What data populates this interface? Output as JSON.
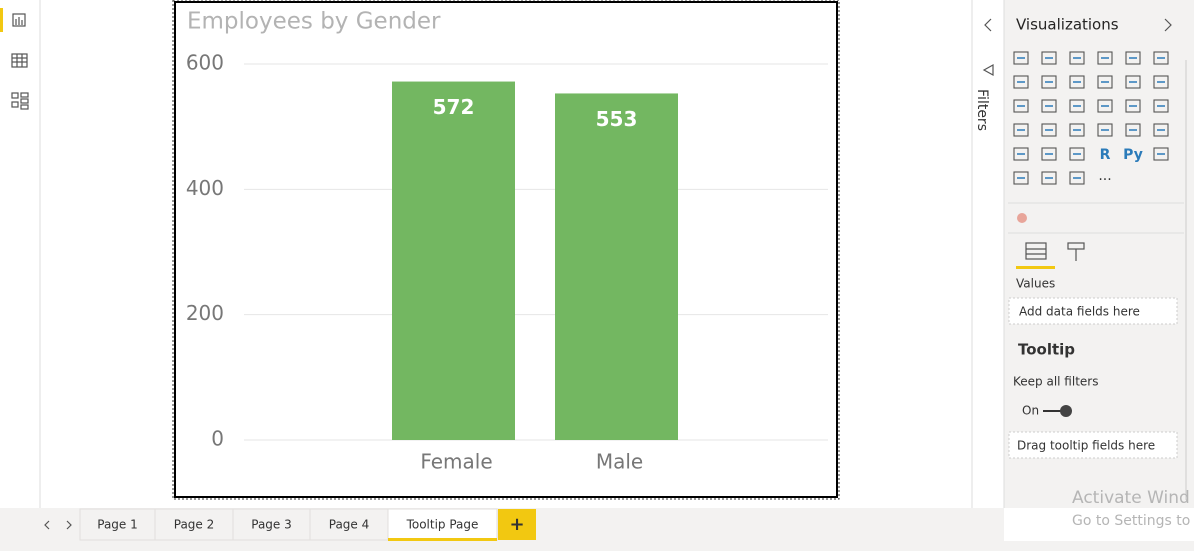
{
  "chart_data": {
    "type": "bar",
    "title": "Employees by Gender",
    "categories": [
      "Female",
      "Male"
    ],
    "values": [
      572,
      553
    ],
    "color": "#73b761",
    "ylim": [
      0,
      600
    ],
    "yticks": [
      0,
      200,
      400,
      600
    ],
    "grid": true,
    "data_labels": true
  },
  "filters_pane": {
    "title": "Filters"
  },
  "visualizations_pane": {
    "title": "Visualizations",
    "icon_labels": [
      "R",
      "Py"
    ],
    "more": "···",
    "values_label": "Values",
    "values_placeholder": "Add data fields here",
    "tooltip_title": "Tooltip",
    "keep_all_filters": "Keep all filters",
    "toggle_state": "On",
    "tooltip_placeholder": "Drag tooltip fields here"
  },
  "page_tabs": [
    "Page 1",
    "Page 2",
    "Page 3",
    "Page 4",
    "Tooltip Page"
  ],
  "active_tab": 4,
  "add_page": "+",
  "watermark": {
    "line1": "Activate Wind",
    "line2": "Go to Settings to a"
  }
}
